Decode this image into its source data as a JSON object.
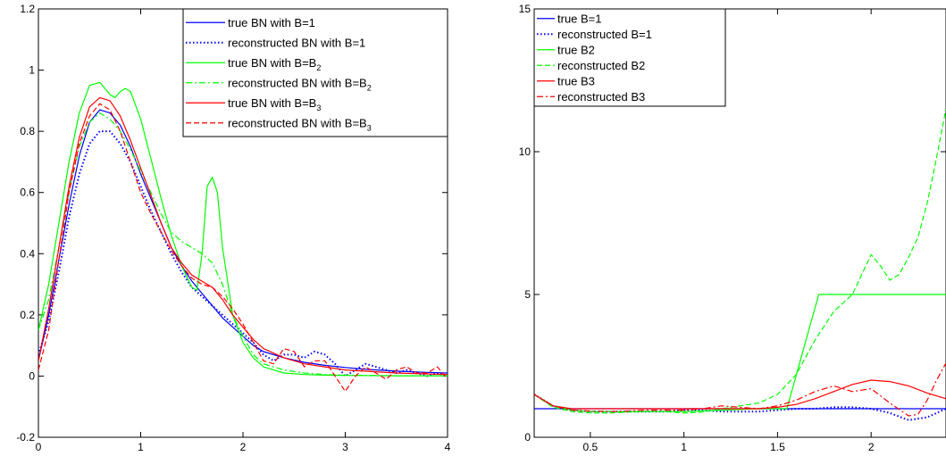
{
  "chart_data": [
    {
      "type": "line",
      "title": "",
      "xlabel": "",
      "ylabel": "",
      "xlim": [
        0,
        4
      ],
      "ylim": [
        -0.2,
        1.2
      ],
      "xticks": [
        "0",
        "1",
        "2",
        "3",
        "4"
      ],
      "xtick_values": [
        0,
        1,
        2,
        3,
        4
      ],
      "yticks": [
        "-0.2",
        "0",
        "0.2",
        "0.4",
        "0.6",
        "0.8",
        "1",
        "1.2"
      ],
      "ytick_values": [
        -0.2,
        0,
        0.2,
        0.4,
        0.6,
        0.8,
        1,
        1.2
      ],
      "grid": false,
      "legend_position": "top-right",
      "series": [
        {
          "name": "true BN with B=1",
          "legend_main": "true BN with B=1",
          "legend_sub": "",
          "color": "#0000ff",
          "style": "solid",
          "x": [
            0,
            0.1,
            0.2,
            0.3,
            0.4,
            0.5,
            0.6,
            0.7,
            0.8,
            0.9,
            1.0,
            1.1,
            1.2,
            1.3,
            1.4,
            1.5,
            1.6,
            1.7,
            1.8,
            1.9,
            2.0,
            2.1,
            2.2,
            2.4,
            2.6,
            2.8,
            3.0,
            3.2,
            3.5,
            3.8,
            4.0
          ],
          "y": [
            0.05,
            0.2,
            0.38,
            0.56,
            0.72,
            0.83,
            0.87,
            0.86,
            0.82,
            0.75,
            0.66,
            0.58,
            0.5,
            0.42,
            0.36,
            0.31,
            0.27,
            0.23,
            0.19,
            0.16,
            0.13,
            0.1,
            0.08,
            0.06,
            0.045,
            0.035,
            0.028,
            0.022,
            0.016,
            0.012,
            0.01
          ]
        },
        {
          "name": "reconstructed BN with B=1",
          "legend_main": "reconstructed BN with B=1",
          "legend_sub": "",
          "color": "#0000ff",
          "style": "dotted",
          "x": [
            0,
            0.1,
            0.2,
            0.3,
            0.4,
            0.5,
            0.6,
            0.7,
            0.8,
            0.9,
            1.0,
            1.1,
            1.2,
            1.3,
            1.4,
            1.5,
            1.6,
            1.7,
            1.8,
            1.9,
            2.0,
            2.1,
            2.2,
            2.3,
            2.4,
            2.5,
            2.6,
            2.7,
            2.8,
            2.9,
            3.0,
            3.1,
            3.2,
            3.3,
            3.4,
            3.5,
            3.6,
            3.7,
            3.8,
            3.9,
            4.0
          ],
          "y": [
            0.07,
            0.18,
            0.34,
            0.52,
            0.66,
            0.76,
            0.8,
            0.8,
            0.76,
            0.7,
            0.62,
            0.54,
            0.47,
            0.4,
            0.34,
            0.29,
            0.26,
            0.23,
            0.2,
            0.17,
            0.14,
            0.11,
            0.07,
            0.05,
            0.07,
            0.07,
            0.06,
            0.08,
            0.07,
            0.04,
            0.0,
            0.02,
            0.04,
            0.03,
            0.02,
            0.01,
            0.02,
            0.01,
            0.0,
            0.01,
            0.0
          ]
        },
        {
          "name": "true BN with B=B2",
          "legend_main": "true BN with B=B",
          "legend_sub": "2",
          "color": "#00ff00",
          "style": "solid",
          "x": [
            0,
            0.1,
            0.2,
            0.3,
            0.4,
            0.5,
            0.6,
            0.7,
            0.75,
            0.8,
            0.85,
            0.9,
            1.0,
            1.1,
            1.2,
            1.3,
            1.4,
            1.5,
            1.55,
            1.6,
            1.65,
            1.7,
            1.75,
            1.8,
            1.9,
            2.0,
            2.1,
            2.2,
            2.4,
            2.6,
            2.8,
            3.0,
            3.5,
            4.0
          ],
          "y": [
            0.15,
            0.3,
            0.5,
            0.7,
            0.86,
            0.95,
            0.96,
            0.92,
            0.91,
            0.93,
            0.94,
            0.93,
            0.84,
            0.71,
            0.58,
            0.46,
            0.36,
            0.29,
            0.28,
            0.4,
            0.62,
            0.65,
            0.6,
            0.42,
            0.2,
            0.11,
            0.06,
            0.03,
            0.01,
            0.005,
            0.003,
            0.002,
            0.001,
            0.001
          ]
        },
        {
          "name": "reconstructed BN with B=B2",
          "legend_main": "reconstructed BN with B=B",
          "legend_sub": "2",
          "color": "#00ff00",
          "style": "dashdot",
          "x": [
            0,
            0.1,
            0.2,
            0.3,
            0.4,
            0.5,
            0.6,
            0.7,
            0.8,
            0.9,
            1.0,
            1.1,
            1.2,
            1.3,
            1.4,
            1.5,
            1.6,
            1.7,
            1.8,
            1.9,
            2.0,
            2.1,
            2.2,
            2.4,
            2.6,
            2.8,
            3.0,
            3.5,
            4.0
          ],
          "y": [
            0.15,
            0.25,
            0.42,
            0.6,
            0.75,
            0.83,
            0.86,
            0.84,
            0.8,
            0.74,
            0.67,
            0.6,
            0.53,
            0.47,
            0.44,
            0.42,
            0.4,
            0.37,
            0.3,
            0.2,
            0.13,
            0.07,
            0.04,
            0.02,
            0.01,
            0.005,
            0.003,
            0.001,
            0.001
          ]
        },
        {
          "name": "true BN with B=B3",
          "legend_main": "true BN with B=B",
          "legend_sub": "3",
          "color": "#ff0000",
          "style": "solid",
          "x": [
            0,
            0.1,
            0.2,
            0.3,
            0.4,
            0.5,
            0.6,
            0.7,
            0.8,
            0.9,
            1.0,
            1.1,
            1.2,
            1.3,
            1.4,
            1.5,
            1.6,
            1.7,
            1.8,
            1.9,
            2.0,
            2.1,
            2.2,
            2.4,
            2.6,
            2.8,
            3.0,
            3.5,
            4.0
          ],
          "y": [
            0.05,
            0.22,
            0.42,
            0.62,
            0.78,
            0.88,
            0.91,
            0.9,
            0.85,
            0.77,
            0.68,
            0.59,
            0.5,
            0.42,
            0.37,
            0.33,
            0.31,
            0.29,
            0.25,
            0.2,
            0.16,
            0.12,
            0.09,
            0.06,
            0.04,
            0.03,
            0.02,
            0.01,
            0.005
          ]
        },
        {
          "name": "reconstructed BN with B=B3",
          "legend_main": "reconstructed BN with B=B",
          "legend_sub": "3",
          "color": "#ff0000",
          "style": "dashed",
          "x": [
            0,
            0.1,
            0.2,
            0.3,
            0.4,
            0.5,
            0.6,
            0.7,
            0.8,
            0.9,
            1.0,
            1.1,
            1.2,
            1.3,
            1.4,
            1.5,
            1.6,
            1.7,
            1.8,
            1.9,
            2.0,
            2.1,
            2.2,
            2.3,
            2.4,
            2.5,
            2.6,
            2.7,
            2.8,
            2.9,
            3.0,
            3.1,
            3.2,
            3.3,
            3.4,
            3.5,
            3.6,
            3.7,
            3.8,
            3.9,
            4.0
          ],
          "y": [
            0.02,
            0.15,
            0.38,
            0.6,
            0.76,
            0.85,
            0.89,
            0.87,
            0.8,
            0.7,
            0.6,
            0.53,
            0.47,
            0.41,
            0.36,
            0.32,
            0.3,
            0.29,
            0.26,
            0.22,
            0.17,
            0.11,
            0.05,
            0.04,
            0.09,
            0.08,
            0.03,
            0.05,
            0.05,
            0.0,
            -0.05,
            0.0,
            0.03,
            0.01,
            -0.01,
            0.02,
            0.03,
            0.01,
            0.01,
            0.03,
            -0.01
          ]
        }
      ]
    },
    {
      "type": "line",
      "title": "",
      "xlabel": "",
      "ylabel": "",
      "xlim": [
        0.2,
        2.4
      ],
      "ylim": [
        0,
        15
      ],
      "xticks": [
        "0.5",
        "1",
        "1.5",
        "2"
      ],
      "xtick_values": [
        0.5,
        1,
        1.5,
        2
      ],
      "yticks": [
        "0",
        "5",
        "10",
        "15"
      ],
      "ytick_values": [
        0,
        5,
        10,
        15
      ],
      "grid": false,
      "legend_position": "top-left",
      "series": [
        {
          "name": "true B=1",
          "legend_main": "true B=1",
          "legend_sub": "",
          "color": "#0000ff",
          "style": "solid",
          "x": [
            0.2,
            2.4
          ],
          "y": [
            1.0,
            1.0
          ]
        },
        {
          "name": "reconstructed B=1",
          "legend_main": "reconstructed B=1",
          "legend_sub": "",
          "color": "#0000ff",
          "style": "dotted",
          "x": [
            0.2,
            0.3,
            0.4,
            0.5,
            0.6,
            0.7,
            0.8,
            0.9,
            1.0,
            1.1,
            1.2,
            1.3,
            1.4,
            1.5,
            1.6,
            1.7,
            1.8,
            1.9,
            2.0,
            2.1,
            2.2,
            2.3,
            2.4
          ],
          "y": [
            1.5,
            1.1,
            0.95,
            0.9,
            0.9,
            0.9,
            0.9,
            0.9,
            0.95,
            0.95,
            0.9,
            0.9,
            0.9,
            0.95,
            1.0,
            1.0,
            1.05,
            1.05,
            1.0,
            0.85,
            0.6,
            0.7,
            1.0
          ]
        },
        {
          "name": "true B2",
          "legend_main": "true B2",
          "legend_sub": "",
          "color": "#00ff00",
          "style": "solid",
          "x": [
            0.2,
            0.3,
            0.4,
            0.5,
            0.6,
            0.8,
            1.0,
            1.2,
            1.4,
            1.5,
            1.55,
            1.72,
            2.4
          ],
          "y": [
            1.5,
            1.1,
            0.95,
            0.9,
            0.9,
            0.9,
            0.9,
            0.95,
            1.0,
            1.0,
            1.0,
            5.0,
            5.0
          ]
        },
        {
          "name": "reconstructed B2",
          "legend_main": "reconstructed B2",
          "legend_sub": "",
          "color": "#00ff00",
          "style": "dashed",
          "x": [
            0.2,
            0.3,
            0.4,
            0.5,
            0.6,
            0.7,
            0.8,
            0.9,
            1.0,
            1.1,
            1.2,
            1.3,
            1.4,
            1.5,
            1.6,
            1.7,
            1.8,
            1.9,
            1.95,
            2.0,
            2.05,
            2.1,
            2.15,
            2.2,
            2.25,
            2.3,
            2.35,
            2.4
          ],
          "y": [
            1.5,
            1.05,
            0.9,
            0.85,
            0.85,
            0.88,
            0.9,
            0.9,
            0.85,
            0.88,
            1.0,
            1.1,
            1.2,
            1.5,
            2.2,
            3.4,
            4.4,
            5.0,
            5.7,
            6.4,
            6.0,
            5.5,
            5.7,
            6.3,
            7.0,
            8.2,
            9.8,
            11.5
          ]
        },
        {
          "name": "true B3",
          "legend_main": "true B3",
          "legend_sub": "",
          "color": "#ff0000",
          "style": "solid",
          "x": [
            0.2,
            0.3,
            0.4,
            0.5,
            0.6,
            0.8,
            1.0,
            1.2,
            1.4,
            1.5,
            1.6,
            1.7,
            1.8,
            1.9,
            2.0,
            2.1,
            2.2,
            2.3,
            2.4
          ],
          "y": [
            1.5,
            1.1,
            1.0,
            1.0,
            1.0,
            1.0,
            1.0,
            1.0,
            1.0,
            1.05,
            1.15,
            1.35,
            1.6,
            1.85,
            2.0,
            1.95,
            1.8,
            1.55,
            1.35
          ]
        },
        {
          "name": "reconstructed B3",
          "legend_main": "reconstructed B3",
          "legend_sub": "",
          "color": "#ff0000",
          "style": "dashdot",
          "x": [
            0.2,
            0.3,
            0.4,
            0.5,
            0.6,
            0.7,
            0.8,
            0.9,
            1.0,
            1.1,
            1.2,
            1.3,
            1.4,
            1.5,
            1.6,
            1.7,
            1.8,
            1.9,
            2.0,
            2.1,
            2.2,
            2.25,
            2.3,
            2.35,
            2.4
          ],
          "y": [
            1.5,
            1.1,
            0.95,
            0.92,
            0.9,
            0.92,
            0.95,
            0.95,
            0.95,
            1.0,
            1.1,
            1.05,
            1.0,
            1.1,
            1.3,
            1.6,
            1.8,
            1.6,
            1.7,
            1.2,
            0.75,
            0.8,
            1.3,
            2.0,
            2.6
          ]
        }
      ]
    }
  ]
}
